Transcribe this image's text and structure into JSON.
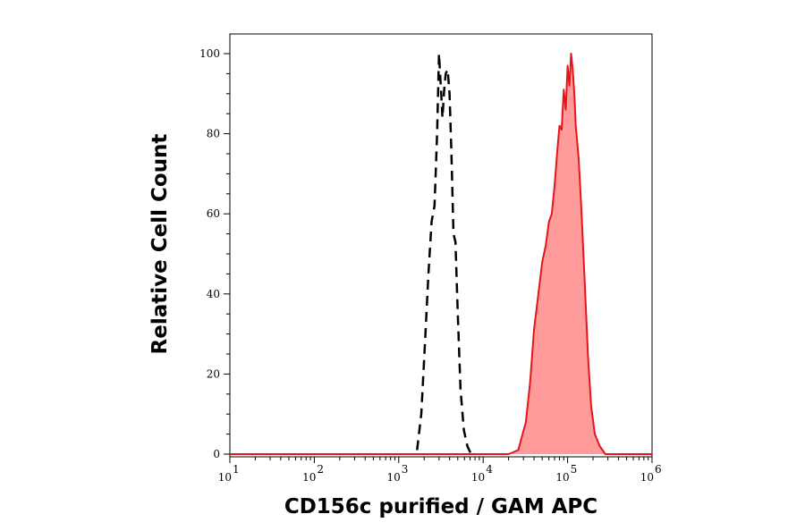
{
  "chart_data": {
    "type": "line",
    "title": "",
    "xlabel": "CD156c purified / GAM APC",
    "ylabel": "Relative Cell Count",
    "x_scale": "log",
    "xlim": [
      10,
      1000000
    ],
    "ylim": [
      0,
      100
    ],
    "grid": false,
    "x_ticks": [
      {
        "base": "10",
        "exp": "1"
      },
      {
        "base": "10",
        "exp": "2"
      },
      {
        "base": "10",
        "exp": "3"
      },
      {
        "base": "10",
        "exp": "4"
      },
      {
        "base": "10",
        "exp": "5"
      },
      {
        "base": "10",
        "exp": "6"
      }
    ],
    "y_ticks": [
      "0",
      "20",
      "40",
      "60",
      "80",
      "100"
    ],
    "series": [
      {
        "style": "dashed",
        "color": "#000000",
        "fill": "none",
        "x": [
          1650,
          1850,
          2050,
          2250,
          2450,
          2650,
          2850,
          3000,
          3150,
          3300,
          3450,
          3600,
          3800,
          4000,
          4200,
          4450,
          4700,
          5000,
          5400,
          5900,
          6500,
          7200
        ],
        "y": [
          1,
          10,
          28,
          45,
          58,
          62,
          80,
          100,
          92,
          84,
          91,
          95,
          96,
          90,
          76,
          55,
          53,
          35,
          16,
          6,
          2,
          0
        ]
      },
      {
        "style": "solid",
        "color": "#e8141b",
        "fill": "#ff9b9b",
        "x": [
          10,
          20000,
          26000,
          32000,
          36000,
          40000,
          45000,
          50000,
          55000,
          60000,
          65000,
          70000,
          75000,
          80000,
          85000,
          90000,
          95000,
          100000,
          105000,
          110000,
          115000,
          120000,
          125000,
          135000,
          145000,
          160000,
          175000,
          190000,
          210000,
          240000,
          280000,
          1000000
        ],
        "y": [
          0,
          0,
          1,
          8,
          18,
          31,
          40,
          48,
          52,
          58,
          60,
          67,
          75,
          82,
          81,
          91,
          86,
          97,
          92,
          100,
          96,
          90,
          82,
          74,
          62,
          42,
          24,
          12,
          5,
          2,
          0,
          0
        ]
      }
    ]
  }
}
